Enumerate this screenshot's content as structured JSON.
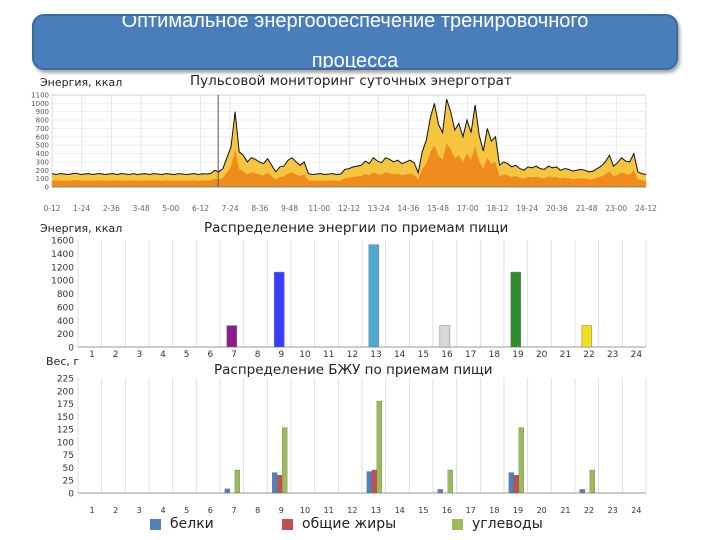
{
  "banner": {
    "title_line1": "Оптимальное энергообеспечение тренировочного",
    "title_line2": "процесса"
  },
  "colors": {
    "banner": "#4a7ebb",
    "area_yellow": "#f5c542",
    "area_orange": "#f08c1e",
    "line_black": "#111111",
    "protein": "#4f81bd",
    "fat": "#c0504d",
    "carb": "#9bbb59"
  },
  "chart_data": [
    {
      "id": "energy_monitoring",
      "type": "area",
      "title": "Пульсовой мониторинг суточных энерготрат",
      "ylabel": "Энергия, ккал",
      "ytick_labels": [
        "0",
        "100",
        "200",
        "300",
        "400",
        "500",
        "600",
        "700",
        "800",
        "900",
        "1000",
        "1100"
      ],
      "ylim": [
        0,
        1100
      ],
      "xtick_labels": [
        "0-12",
        "1-24",
        "2-36",
        "3-48",
        "5-00",
        "6-12",
        "7-24",
        "8-36",
        "9-48",
        "11-00",
        "12-12",
        "13-24",
        "14-36",
        "15-48",
        "17-00",
        "18-12",
        "19-24",
        "20-36",
        "21-48",
        "23-00",
        "24-12"
      ],
      "marker_index": 6,
      "series": [
        {
          "name": "total",
          "values": [
            160,
            150,
            160,
            155,
            150,
            160,
            165,
            150,
            155,
            160,
            150,
            158,
            160,
            150,
            155,
            160,
            150,
            160,
            155,
            150,
            160,
            150,
            155,
            160,
            150,
            160,
            155,
            150,
            160,
            155,
            150,
            160,
            155,
            150,
            155,
            160,
            150,
            158,
            155,
            160,
            200,
            180,
            220,
            350,
            480,
            900,
            420,
            380,
            300,
            350,
            330,
            300,
            280,
            340,
            260,
            180,
            240,
            250,
            320,
            350,
            300,
            260,
            300,
            160,
            150,
            155,
            160,
            150,
            155,
            160,
            150,
            155,
            210,
            220,
            240,
            250,
            260,
            310,
            280,
            350,
            310,
            290,
            350,
            330,
            300,
            320,
            280,
            300,
            320,
            290,
            170,
            420,
            560,
            830,
            1000,
            750,
            650,
            1050,
            900,
            680,
            760,
            600,
            800,
            650,
            980,
            620,
            430,
            700,
            550,
            600,
            260,
            300,
            280,
            240,
            260,
            220,
            200,
            240,
            230,
            250,
            220,
            210,
            250,
            230,
            240,
            200,
            220,
            210,
            190,
            200,
            210,
            200,
            180,
            190,
            220,
            250,
            300,
            380,
            250,
            290,
            350,
            310,
            300,
            400,
            180,
            160,
            150
          ]
        },
        {
          "name": "base",
          "values": [
            80,
            75,
            80,
            78,
            76,
            80,
            82,
            75,
            78,
            80,
            75,
            79,
            80,
            75,
            78,
            80,
            75,
            80,
            78,
            75,
            80,
            75,
            78,
            80,
            75,
            80,
            78,
            75,
            80,
            78,
            75,
            80,
            78,
            75,
            78,
            80,
            75,
            79,
            78,
            80,
            100,
            90,
            110,
            175,
            240,
            450,
            210,
            190,
            150,
            175,
            165,
            150,
            140,
            170,
            130,
            90,
            120,
            125,
            160,
            175,
            150,
            130,
            150,
            80,
            75,
            78,
            80,
            75,
            78,
            80,
            75,
            78,
            105,
            110,
            120,
            125,
            130,
            155,
            140,
            175,
            155,
            145,
            175,
            165,
            150,
            160,
            140,
            150,
            160,
            145,
            85,
            210,
            280,
            415,
            500,
            375,
            325,
            525,
            450,
            340,
            380,
            300,
            400,
            325,
            490,
            310,
            215,
            350,
            275,
            300,
            130,
            150,
            140,
            120,
            130,
            110,
            100,
            120,
            115,
            125,
            110,
            105,
            125,
            115,
            120,
            100,
            110,
            105,
            95,
            100,
            105,
            100,
            90,
            95,
            110,
            125,
            150,
            190,
            125,
            145,
            175,
            155,
            150,
            200,
            90,
            80,
            75
          ]
        }
      ]
    },
    {
      "id": "energy_meals",
      "type": "bar",
      "title": "Распределение энергии по приемам пищи",
      "ylabel": "Энергия, ккал",
      "ytick_labels": [
        "0",
        "200",
        "400",
        "600",
        "800",
        "1000",
        "1200",
        "1400",
        "1600"
      ],
      "ylim": [
        0,
        1600
      ],
      "categories": [
        "1",
        "2",
        "3",
        "4",
        "5",
        "6",
        "7",
        "8",
        "9",
        "10",
        "11",
        "12",
        "13",
        "14",
        "15",
        "16",
        "17",
        "18",
        "19",
        "20",
        "21",
        "22",
        "23",
        "24"
      ],
      "values": [
        0,
        0,
        0,
        0,
        0,
        0,
        320,
        0,
        1120,
        0,
        0,
        0,
        1530,
        0,
        0,
        320,
        0,
        0,
        1120,
        0,
        0,
        320,
        0,
        0
      ],
      "bar_colors": {
        "7": "#8b1a8b",
        "9": "#3b3bff",
        "13": "#4fa7d6",
        "16": "#d8d8d8",
        "19": "#2e8b2e",
        "22": "#f0e020"
      }
    },
    {
      "id": "bju_meals",
      "type": "bar",
      "title": "Распределение БЖУ по приемам пищи",
      "ylabel": "Вес, г",
      "ytick_labels": [
        "0",
        "25",
        "50",
        "75",
        "100",
        "125",
        "150",
        "175",
        "200",
        "225"
      ],
      "ylim": [
        0,
        225
      ],
      "categories": [
        "1",
        "2",
        "3",
        "4",
        "5",
        "6",
        "7",
        "8",
        "9",
        "10",
        "11",
        "12",
        "13",
        "14",
        "15",
        "16",
        "17",
        "18",
        "19",
        "20",
        "21",
        "22",
        "23",
        "24"
      ],
      "series": [
        {
          "name": "белки",
          "values": [
            0,
            0,
            0,
            0,
            0,
            0,
            8,
            0,
            40,
            0,
            0,
            0,
            42,
            0,
            0,
            7,
            0,
            0,
            40,
            0,
            0,
            7,
            0,
            0
          ]
        },
        {
          "name": "общие жиры",
          "values": [
            0,
            0,
            0,
            0,
            0,
            0,
            0,
            0,
            35,
            0,
            0,
            0,
            45,
            0,
            0,
            0,
            0,
            0,
            35,
            0,
            0,
            0,
            0,
            0
          ]
        },
        {
          "name": "углеводы",
          "values": [
            0,
            0,
            0,
            0,
            0,
            0,
            45,
            0,
            128,
            0,
            0,
            0,
            180,
            0,
            0,
            45,
            0,
            0,
            128,
            0,
            0,
            45,
            0,
            0
          ]
        }
      ]
    }
  ]
}
